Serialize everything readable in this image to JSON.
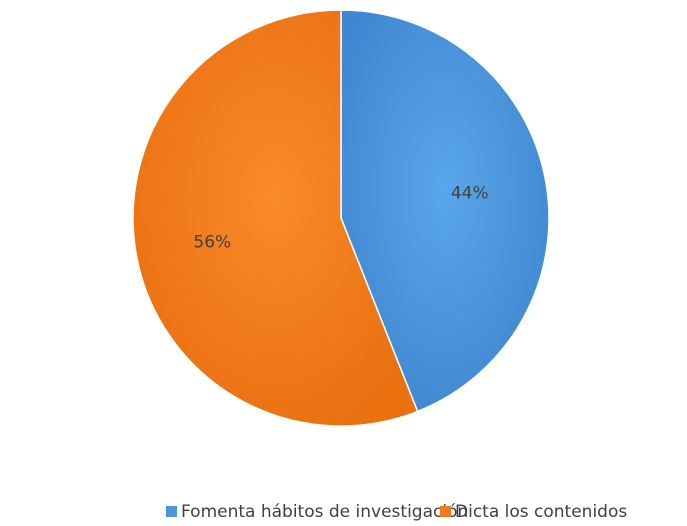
{
  "chart_data": {
    "type": "pie",
    "categories": [
      "Fomenta hábitos de investigación",
      "Dicta los contenidos"
    ],
    "values": [
      44,
      56
    ],
    "data_labels": [
      "44%",
      "56%"
    ],
    "colors": [
      "#4a95dc",
      "#f27a1a"
    ],
    "legend_position": "bottom"
  }
}
